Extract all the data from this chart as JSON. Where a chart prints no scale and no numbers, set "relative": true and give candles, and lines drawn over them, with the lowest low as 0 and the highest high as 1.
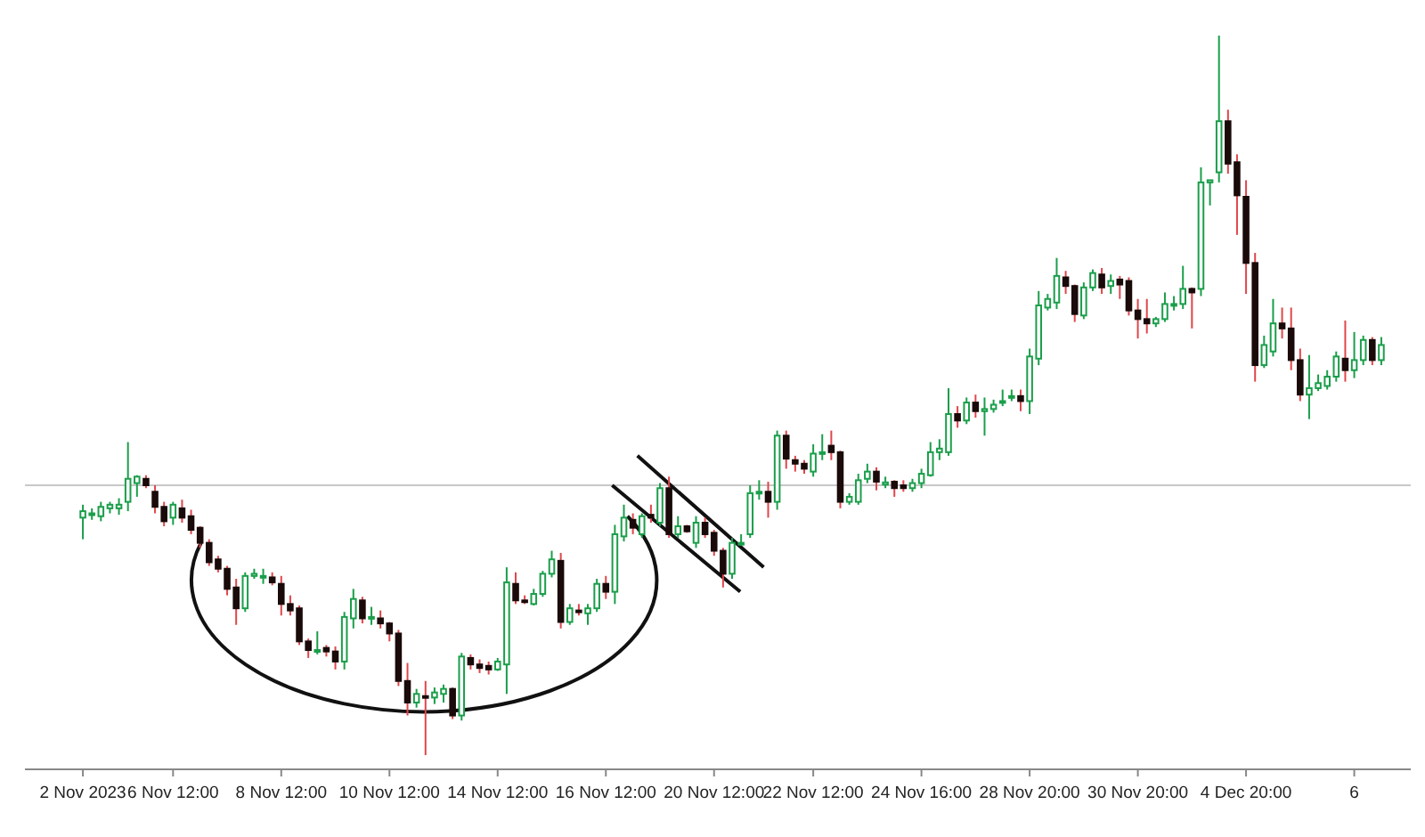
{
  "chart_data": {
    "type": "candlestick",
    "relative": true,
    "categories": [
      "2 Nov 2023",
      null,
      null,
      null,
      null,
      null,
      null,
      null,
      null,
      null,
      "6 Nov 12:00",
      null,
      null,
      null,
      null,
      null,
      null,
      null,
      null,
      null,
      null,
      null,
      "8 Nov 12:00",
      null,
      null,
      null,
      null,
      null,
      null,
      null,
      null,
      null,
      null,
      null,
      "10 Nov 12:00",
      null,
      null,
      null,
      null,
      null,
      null,
      null,
      null,
      null,
      null,
      null,
      "14 Nov 12:00",
      null,
      null,
      null,
      null,
      null,
      null,
      null,
      null,
      null,
      null,
      null,
      "16 Nov 12:00",
      null,
      null,
      null,
      null,
      null,
      null,
      null,
      null,
      null,
      null,
      null,
      "20 Nov 12:00",
      null,
      null,
      null,
      null,
      null,
      null,
      null,
      null,
      null,
      null,
      "22 Nov 12:00",
      null,
      null,
      null,
      null,
      null,
      null,
      null,
      null,
      null,
      null,
      null,
      "24 Nov 16:00",
      null,
      null,
      null,
      null,
      null,
      null,
      null,
      null,
      null,
      null,
      null,
      "28 Nov 20:00",
      null,
      null,
      null,
      null,
      null,
      null,
      null,
      null,
      null,
      null,
      null,
      "30 Nov 20:00",
      null,
      null,
      null,
      null,
      null,
      null,
      null,
      null,
      null,
      null,
      null,
      "4 Dec 20:00",
      null,
      null,
      null,
      null,
      null,
      null,
      null,
      null,
      null,
      null,
      null,
      "6",
      null,
      null,
      null
    ],
    "ohlc": [
      [
        0.33,
        0.348,
        0.3,
        0.339
      ],
      [
        0.334,
        0.343,
        0.327,
        0.336
      ],
      [
        0.332,
        0.352,
        0.325,
        0.345
      ],
      [
        0.343,
        0.352,
        0.336,
        0.348
      ],
      [
        0.343,
        0.357,
        0.334,
        0.348
      ],
      [
        0.352,
        0.435,
        0.339,
        0.384
      ],
      [
        0.378,
        0.389,
        0.359,
        0.387
      ],
      [
        0.384,
        0.389,
        0.371,
        0.375
      ],
      [
        0.366,
        0.375,
        0.336,
        0.345
      ],
      [
        0.345,
        0.352,
        0.318,
        0.325
      ],
      [
        0.33,
        0.352,
        0.32,
        0.348
      ],
      [
        0.343,
        0.355,
        0.323,
        0.33
      ],
      [
        0.332,
        0.341,
        0.307,
        0.313
      ],
      [
        0.316,
        0.318,
        0.288,
        0.295
      ],
      [
        0.295,
        0.3,
        0.263,
        0.268
      ],
      [
        0.272,
        0.277,
        0.254,
        0.259
      ],
      [
        0.259,
        0.263,
        0.222,
        0.231
      ],
      [
        0.233,
        0.245,
        0.181,
        0.204
      ],
      [
        0.204,
        0.254,
        0.199,
        0.249
      ],
      [
        0.249,
        0.259,
        0.245,
        0.252
      ],
      [
        0.247,
        0.259,
        0.238,
        0.249
      ],
      [
        0.247,
        0.254,
        0.236,
        0.24
      ],
      [
        0.238,
        0.249,
        0.194,
        0.21
      ],
      [
        0.21,
        0.222,
        0.194,
        0.201
      ],
      [
        0.204,
        0.208,
        0.153,
        0.158
      ],
      [
        0.158,
        0.162,
        0.135,
        0.146
      ],
      [
        0.144,
        0.172,
        0.14,
        0.146
      ],
      [
        0.149,
        0.153,
        0.137,
        0.144
      ],
      [
        0.144,
        0.151,
        0.119,
        0.13
      ],
      [
        0.13,
        0.199,
        0.119,
        0.192
      ],
      [
        0.19,
        0.231,
        0.176,
        0.217
      ],
      [
        0.215,
        0.22,
        0.183,
        0.19
      ],
      [
        0.19,
        0.206,
        0.181,
        0.192
      ],
      [
        0.19,
        0.201,
        0.176,
        0.183
      ],
      [
        0.183,
        0.185,
        0.158,
        0.169
      ],
      [
        0.169,
        0.174,
        0.096,
        0.103
      ],
      [
        0.103,
        0.128,
        0.055,
        0.073
      ],
      [
        0.073,
        0.092,
        0.066,
        0.085
      ],
      [
        0.082,
        0.103,
        0,
        0.08
      ],
      [
        0.08,
        0.094,
        0.071,
        0.087
      ],
      [
        0.085,
        0.098,
        0.073,
        0.092
      ],
      [
        0.092,
        0.094,
        0.05,
        0.055
      ],
      [
        0.055,
        0.142,
        0.048,
        0.137
      ],
      [
        0.135,
        0.14,
        0.119,
        0.126
      ],
      [
        0.126,
        0.133,
        0.114,
        0.121
      ],
      [
        0.124,
        0.13,
        0.112,
        0.119
      ],
      [
        0.119,
        0.135,
        0.117,
        0.13
      ],
      [
        0.126,
        0.261,
        0.085,
        0.24
      ],
      [
        0.238,
        0.254,
        0.21,
        0.215
      ],
      [
        0.215,
        0.222,
        0.21,
        0.213
      ],
      [
        0.21,
        0.231,
        0.208,
        0.224
      ],
      [
        0.224,
        0.256,
        0.22,
        0.252
      ],
      [
        0.252,
        0.284,
        0.247,
        0.272
      ],
      [
        0.27,
        0.281,
        0.176,
        0.185
      ],
      [
        0.185,
        0.21,
        0.181,
        0.204
      ],
      [
        0.201,
        0.21,
        0.194,
        0.199
      ],
      [
        0.197,
        0.21,
        0.181,
        0.204
      ],
      [
        0.204,
        0.245,
        0.199,
        0.238
      ],
      [
        0.238,
        0.249,
        0.217,
        0.227
      ],
      [
        0.227,
        0.32,
        0.21,
        0.307
      ],
      [
        0.304,
        0.348,
        0.297,
        0.33
      ],
      [
        0.327,
        0.336,
        0.307,
        0.316
      ],
      [
        0.307,
        0.336,
        0.302,
        0.332
      ],
      [
        0.334,
        0.348,
        0.323,
        0.33
      ],
      [
        0.323,
        0.378,
        0.318,
        0.371
      ],
      [
        0.371,
        0.387,
        0.302,
        0.307
      ],
      [
        0.307,
        0.332,
        0.302,
        0.318
      ],
      [
        0.318,
        0.32,
        0.309,
        0.311
      ],
      [
        0.295,
        0.332,
        0.288,
        0.323
      ],
      [
        0.323,
        0.33,
        0.302,
        0.307
      ],
      [
        0.309,
        0.313,
        0.277,
        0.284
      ],
      [
        0.284,
        0.288,
        0.233,
        0.252
      ],
      [
        0.252,
        0.302,
        0.245,
        0.295
      ],
      [
        0.293,
        0.307,
        0.291,
        0.295
      ],
      [
        0.307,
        0.375,
        0.302,
        0.364
      ],
      [
        0.365,
        0.382,
        0.355,
        0.366
      ],
      [
        0.366,
        0.38,
        0.33,
        0.352
      ],
      [
        0.352,
        0.451,
        0.341,
        0.444
      ],
      [
        0.444,
        0.451,
        0.398,
        0.412
      ],
      [
        0.41,
        0.416,
        0.394,
        0.405
      ],
      [
        0.405,
        0.41,
        0.391,
        0.398
      ],
      [
        0.394,
        0.432,
        0.387,
        0.419
      ],
      [
        0.419,
        0.446,
        0.41,
        0.421
      ],
      [
        0.43,
        0.451,
        0.41,
        0.421
      ],
      [
        0.421,
        0.423,
        0.343,
        0.352
      ],
      [
        0.352,
        0.364,
        0.348,
        0.359
      ],
      [
        0.352,
        0.391,
        0.348,
        0.382
      ],
      [
        0.384,
        0.405,
        0.378,
        0.394
      ],
      [
        0.394,
        0.4,
        0.368,
        0.38
      ],
      [
        0.376,
        0.387,
        0.371,
        0.379
      ],
      [
        0.38,
        0.382,
        0.359,
        0.371
      ],
      [
        0.375,
        0.382,
        0.366,
        0.371
      ],
      [
        0.371,
        0.384,
        0.366,
        0.378
      ],
      [
        0.378,
        0.398,
        0.371,
        0.391
      ],
      [
        0.389,
        0.435,
        0.387,
        0.421
      ],
      [
        0.421,
        0.439,
        0.41,
        0.426
      ],
      [
        0.421,
        0.51,
        0.416,
        0.474
      ],
      [
        0.474,
        0.485,
        0.455,
        0.465
      ],
      [
        0.465,
        0.497,
        0.46,
        0.49
      ],
      [
        0.49,
        0.501,
        0.469,
        0.478
      ],
      [
        0.478,
        0.497,
        0.444,
        0.481
      ],
      [
        0.481,
        0.494,
        0.476,
        0.487
      ],
      [
        0.49,
        0.508,
        0.485,
        0.492
      ],
      [
        0.497,
        0.508,
        0.492,
        0.499
      ],
      [
        0.499,
        0.508,
        0.478,
        0.492
      ],
      [
        0.492,
        0.565,
        0.474,
        0.554
      ],
      [
        0.551,
        0.645,
        0.542,
        0.625
      ],
      [
        0.622,
        0.641,
        0.618,
        0.634
      ],
      [
        0.629,
        0.691,
        0.62,
        0.666
      ],
      [
        0.664,
        0.673,
        0.641,
        0.652
      ],
      [
        0.652,
        0.654,
        0.602,
        0.613
      ],
      [
        0.611,
        0.657,
        0.606,
        0.65
      ],
      [
        0.65,
        0.675,
        0.645,
        0.67
      ],
      [
        0.668,
        0.677,
        0.641,
        0.65
      ],
      [
        0.652,
        0.668,
        0.641,
        0.659
      ],
      [
        0.661,
        0.666,
        0.634,
        0.654
      ],
      [
        0.659,
        0.664,
        0.611,
        0.618
      ],
      [
        0.618,
        0.634,
        0.579,
        0.606
      ],
      [
        0.606,
        0.634,
        0.586,
        0.6
      ],
      [
        0.6,
        0.609,
        0.595,
        0.606
      ],
      [
        0.606,
        0.643,
        0.602,
        0.627
      ],
      [
        0.625,
        0.638,
        0.618,
        0.627
      ],
      [
        0.627,
        0.68,
        0.62,
        0.648
      ],
      [
        0.648,
        0.65,
        0.593,
        0.643
      ],
      [
        0.648,
        0.817,
        0.638,
        0.796
      ],
      [
        0.796,
        0.799,
        0.764,
        0.799
      ],
      [
        0.81,
        1,
        0.796,
        0.881
      ],
      [
        0.881,
        0.897,
        0.808,
        0.822
      ],
      [
        0.824,
        0.835,
        0.723,
        0.778
      ],
      [
        0.776,
        0.799,
        0.641,
        0.684
      ],
      [
        0.684,
        0.698,
        0.519,
        0.542
      ],
      [
        0.542,
        0.583,
        0.538,
        0.57
      ],
      [
        0.561,
        0.634,
        0.554,
        0.6
      ],
      [
        0.6,
        0.622,
        0.579,
        0.593
      ],
      [
        0.593,
        0.622,
        0.535,
        0.549
      ],
      [
        0.549,
        0.565,
        0.492,
        0.501
      ],
      [
        0.501,
        0.556,
        0.467,
        0.51
      ],
      [
        0.51,
        0.529,
        0.506,
        0.517
      ],
      [
        0.513,
        0.535,
        0.508,
        0.526
      ],
      [
        0.526,
        0.561,
        0.519,
        0.554
      ],
      [
        0.551,
        0.604,
        0.519,
        0.535
      ],
      [
        0.535,
        0.588,
        0.524,
        0.549
      ],
      [
        0.549,
        0.583,
        0.542,
        0.577
      ],
      [
        0.577,
        0.581,
        0.542,
        0.549
      ],
      [
        0.549,
        0.581,
        0.542,
        0.57
      ]
    ],
    "ref_lines": [
      {
        "axis": "y",
        "value": 0.375,
        "color": "#c8c8c8"
      }
    ]
  }
}
